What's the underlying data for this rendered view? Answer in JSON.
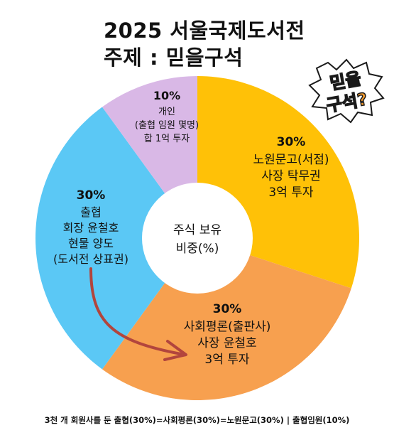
{
  "title_line1": "2025 서울국제도서전",
  "title_line2": "주제 : 믿을구석",
  "badge_text_1": "믿을",
  "badge_text_2": "구석?",
  "footer": "3천 개 회원사를 둔 출협(30%)=사회평론(30%)=노원문고(30%) | 출협임원(10%)",
  "colors": {
    "gold": "#FFC107",
    "orange": "#F7A04F",
    "blue": "#5BC8F5",
    "lavender": "#D9B8E6",
    "arrow": "#B2453D",
    "badge_fill": "#F39A2C",
    "badge_outline": "#1a1a1a"
  },
  "chart_data": {
    "type": "pie",
    "center_label": [
      "주식 보유",
      "비중(%)"
    ],
    "slices": [
      {
        "value": 30,
        "color": "#FFC107",
        "pct_label": "30%",
        "lines": [
          "노원문고(서점)",
          "사장 탁무권",
          "3억 투자"
        ]
      },
      {
        "value": 30,
        "color": "#F7A04F",
        "pct_label": "30%",
        "lines": [
          "사회평론(출판사)",
          "사장 윤철호",
          "3억 투자"
        ]
      },
      {
        "value": 30,
        "color": "#5BC8F5",
        "pct_label": "30%",
        "lines": [
          "출협",
          "회장 윤철호",
          "현물 양도",
          "(도서전 상표권)"
        ]
      },
      {
        "value": 10,
        "color": "#D9B8E6",
        "pct_label": "10%",
        "lines": [
          "개인",
          "(출협 임원 몇명)",
          "합 1억 투자"
        ]
      }
    ]
  }
}
